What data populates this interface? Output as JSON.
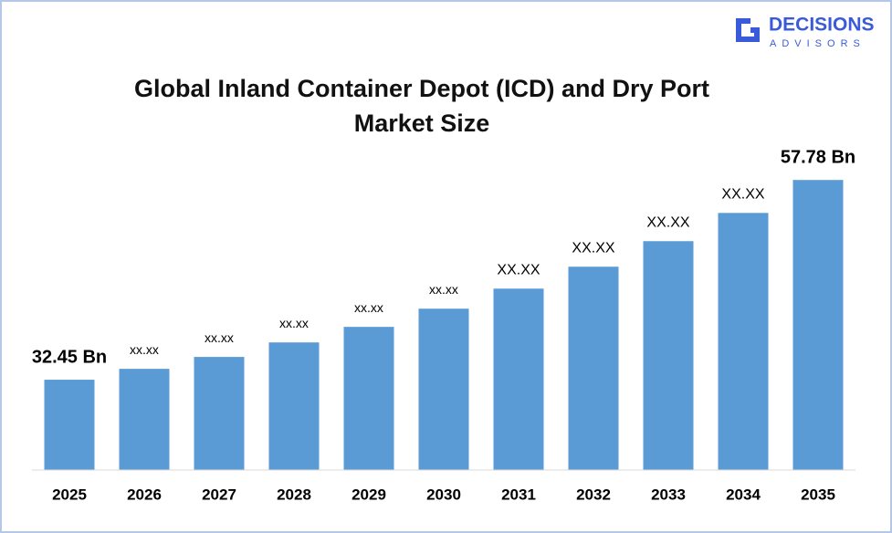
{
  "logo": {
    "name": "DECISIONS",
    "tagline": "ADVISORS"
  },
  "chart_data": {
    "type": "bar",
    "title": "Global Inland Container Depot (ICD) and Dry Port Market Size",
    "categories": [
      "2025",
      "2026",
      "2027",
      "2028",
      "2029",
      "2030",
      "2031",
      "2032",
      "2033",
      "2034",
      "2035"
    ],
    "values": [
      32.45,
      33.83,
      35.34,
      37.18,
      39.15,
      41.46,
      44.0,
      46.78,
      50.02,
      53.6,
      57.78
    ],
    "value_labels": [
      "32.45 Bn",
      "xx.xx",
      "xx.xx",
      "xx.xx",
      "xx.xx",
      "xx.xx",
      "XX.XX",
      "XX.XX",
      "XX.XX",
      "XX.XX",
      "57.78 Bn"
    ],
    "color": "#5b9bd5",
    "ylim": [
      21,
      60
    ]
  }
}
